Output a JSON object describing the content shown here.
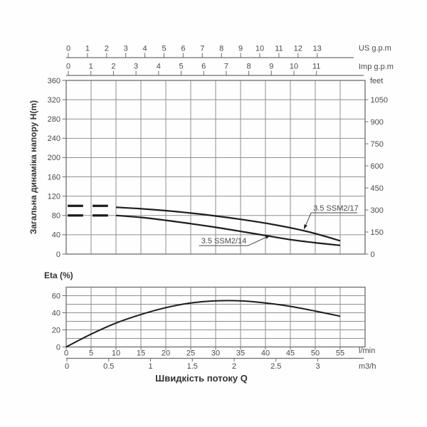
{
  "top_axes": {
    "us_gpm": {
      "label": "US g.p.m",
      "ticks": [
        0,
        1,
        2,
        3,
        4,
        5,
        6,
        7,
        8,
        9,
        10,
        11,
        12,
        13
      ]
    },
    "imp_gpm": {
      "label": "Imp g.p.m",
      "ticks": [
        0,
        1,
        2,
        3,
        4,
        5,
        6,
        7,
        8,
        9,
        10,
        11
      ]
    }
  },
  "head_chart": {
    "y_axis_label": "Загальна динаміка напору H(m)",
    "y_ticks_m": [
      0,
      40,
      80,
      120,
      160,
      200,
      240,
      280,
      320,
      360
    ],
    "right_axis_label": "feet",
    "right_ticks_feet": [
      0,
      150,
      300,
      450,
      600,
      750,
      900,
      1050
    ]
  },
  "eta_chart": {
    "label": "Eta (%)",
    "y_tick_labels": [
      0,
      20,
      40,
      60
    ],
    "y_gridlines": [
      0,
      10,
      20,
      30,
      40,
      50,
      60,
      70
    ]
  },
  "bottom_axes": {
    "lmin": {
      "label": "l/min",
      "ticks": [
        0,
        5,
        10,
        15,
        20,
        25,
        30,
        35,
        40,
        45,
        50,
        55
      ]
    },
    "m3h": {
      "label": "m3/h",
      "ticks": [
        0,
        0.5,
        1,
        1.5,
        2,
        2.5,
        3
      ]
    }
  },
  "x_axis_title": "Швидкість потоку Q",
  "colors": {
    "curve": "#1c1c1c",
    "grid": "#8f8f8f",
    "border": "#6e6e6e",
    "text": "#4a4a4a",
    "bold_text": "#333333",
    "background": "#fefefe"
  },
  "chart_data": [
    {
      "type": "line",
      "title": "Pump head curves",
      "xlabel": "Швидкість потоку Q",
      "ylabel": "Загальна динаміка напору H(m)",
      "x_unit": "l/min",
      "xlim": [
        0,
        60
      ],
      "ylim": [
        0,
        360
      ],
      "grid": true,
      "x_gridline_step_lmin": 5,
      "y_gridline_step_m": 40,
      "series": [
        {
          "name": "3.5 SSM2/17",
          "x_lmin": [
            10,
            15,
            20,
            25,
            30,
            35,
            40,
            45,
            50,
            55
          ],
          "head_m": [
            97,
            94,
            90,
            85,
            79,
            72,
            64,
            54.5,
            42.5,
            27.5
          ],
          "dashed_low_flow_head_m": 100,
          "dash_segments_lmin": [
            [
              0.3,
              3.4
            ],
            [
              5.3,
              8.4
            ]
          ]
        },
        {
          "name": "3.5 SSM2/14",
          "x_lmin": [
            10,
            15,
            20,
            25,
            30,
            35,
            40,
            45,
            50,
            55
          ],
          "head_m": [
            80,
            76,
            70,
            63,
            55.5,
            47,
            38.5,
            30,
            23.5,
            18
          ],
          "dashed_low_flow_head_m": 80,
          "dash_segments_lmin": [
            [
              0.3,
              3.4
            ],
            [
              5.3,
              8.4
            ]
          ]
        }
      ],
      "annotations": [
        {
          "text": "3.5 SSM2/17",
          "label_x_lmin": 49.6,
          "label_y_m": 90,
          "target_x_lmin": 47.7,
          "target_y_m": 51,
          "leader_from": "start",
          "underline_w": 62
        },
        {
          "text": "3.5 SSM2/14",
          "label_x_lmin": 27.1,
          "label_y_m": 22,
          "target_x_lmin": 41,
          "target_y_m": 39,
          "leader_from": "end",
          "underline_w": 66
        }
      ]
    },
    {
      "type": "line",
      "title": "Eta (%)",
      "x_unit": "l/min",
      "x": [
        0,
        5,
        10,
        15,
        20,
        25,
        30,
        35,
        40,
        45,
        50,
        55
      ],
      "values": [
        0,
        15,
        28,
        38,
        46,
        51.5,
        54,
        54,
        51.5,
        47.5,
        42,
        36
      ],
      "xlim": [
        0,
        60
      ],
      "ylim": [
        0,
        70
      ],
      "grid": true
    }
  ]
}
